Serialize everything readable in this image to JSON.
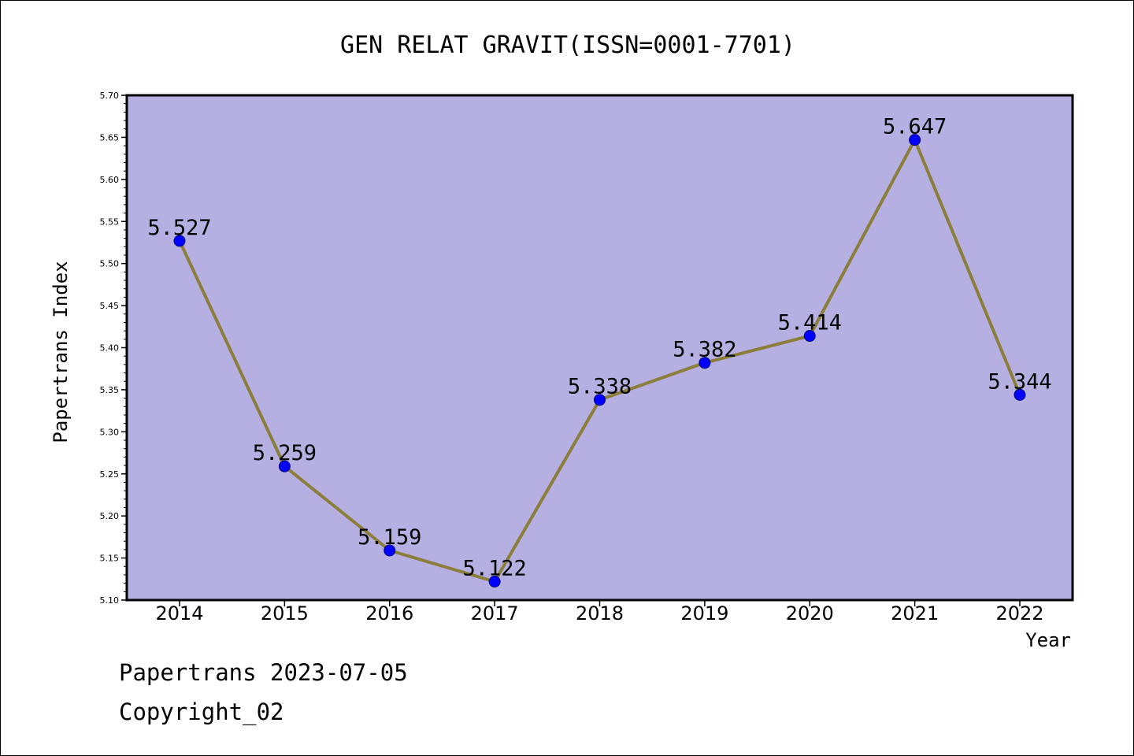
{
  "chart_data": {
    "type": "line",
    "title": "GEN RELAT GRAVIT(ISSN=0001-7701)",
    "xlabel": "Year",
    "ylabel": "Papertrans Index",
    "categories": [
      "2014",
      "2015",
      "2016",
      "2017",
      "2018",
      "2019",
      "2020",
      "2021",
      "2022"
    ],
    "series": [
      {
        "values": [
          5.527,
          5.259,
          5.159,
          5.122,
          5.338,
          5.382,
          5.414,
          5.647,
          5.344
        ],
        "labels": [
          "5.527",
          "5.259",
          "5.159",
          "5.122",
          "5.338",
          "5.382",
          "5.414",
          "5.647",
          "5.344"
        ]
      }
    ],
    "ylim": [
      5.1,
      5.7
    ],
    "yticks": [
      "5.10",
      "5.15",
      "5.20",
      "5.25",
      "5.30",
      "5.35",
      "5.40",
      "5.45",
      "5.50",
      "5.55",
      "5.60",
      "5.65",
      "5.70"
    ],
    "grid": false,
    "colors": {
      "plot_background": "#b5afe2",
      "line": "#8b7d3a",
      "marker": "#0000ff"
    }
  },
  "footer": {
    "source": "Papertrans 2023-07-05",
    "copyright": "Copyright_02"
  }
}
